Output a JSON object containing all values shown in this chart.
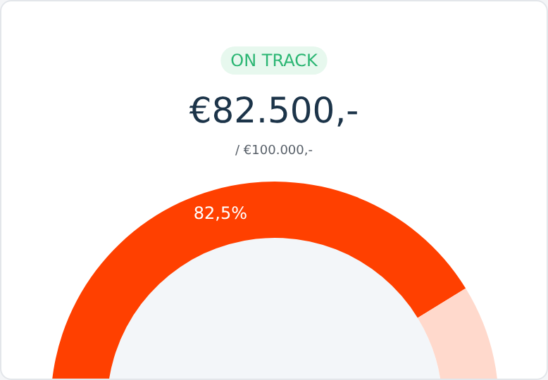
{
  "chart_data": {
    "type": "donut",
    "title": "€82.500,-",
    "subtitle": "/ €100.000,-",
    "annotations": [
      "ON TRACK"
    ],
    "categories": [
      null,
      null
    ],
    "values": [
      82.5,
      17.5
    ],
    "colors": [
      "#ff4000",
      "#ffd9cc"
    ],
    "value_labels": [
      "82,5%",
      null
    ]
  }
}
